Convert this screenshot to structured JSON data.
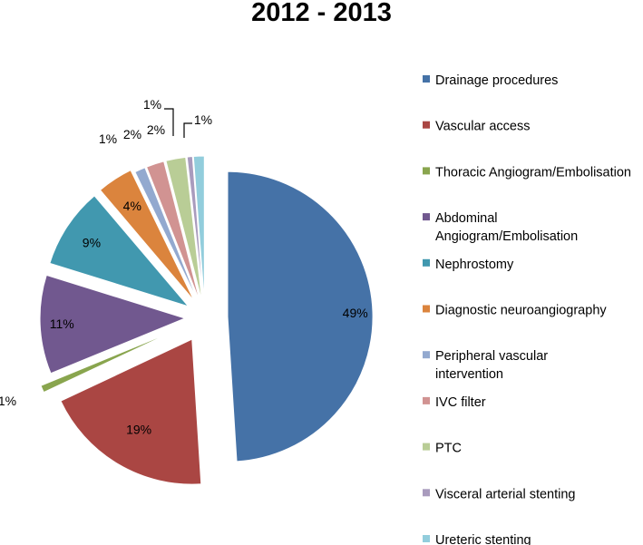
{
  "chart_data": {
    "type": "pie",
    "title": "2012 - 2013",
    "slices": [
      {
        "label": "Drainage procedures",
        "value": 49,
        "display": "49%",
        "color": "#4572A7"
      },
      {
        "label": "Vascular access",
        "value": 19,
        "display": "19%",
        "color": "#AA4643"
      },
      {
        "label": "Thoracic Angiogram/Embolisation",
        "value": 0.8,
        "display": "1%",
        "color": "#89A54E"
      },
      {
        "label": "Abdominal Angiogram/Embolisation",
        "value": 11,
        "display": "11%",
        "color": "#71588F"
      },
      {
        "label": "Nephrostomy",
        "value": 9,
        "display": "9%",
        "color": "#4198AF"
      },
      {
        "label": "Diagnostic neuroangiography",
        "value": 4,
        "display": "4%",
        "color": "#DB843D"
      },
      {
        "label": "Peripheral vascular intervention",
        "value": 1.2,
        "display": "1%",
        "color": "#93A9CF"
      },
      {
        "label": "IVC filter",
        "value": 2,
        "display": "2%",
        "color": "#D19392"
      },
      {
        "label": "PTC",
        "value": 2.2,
        "display": "2%",
        "color": "#B9CD96"
      },
      {
        "label": "Visceral arterial stenting",
        "value": 0.6,
        "display": "1%",
        "color": "#A99BBD"
      },
      {
        "label": "Ureteric stenting",
        "value": 1.2,
        "display": "1%",
        "color": "#92CDDC"
      }
    ],
    "exploded": true,
    "legend_position": "right"
  }
}
